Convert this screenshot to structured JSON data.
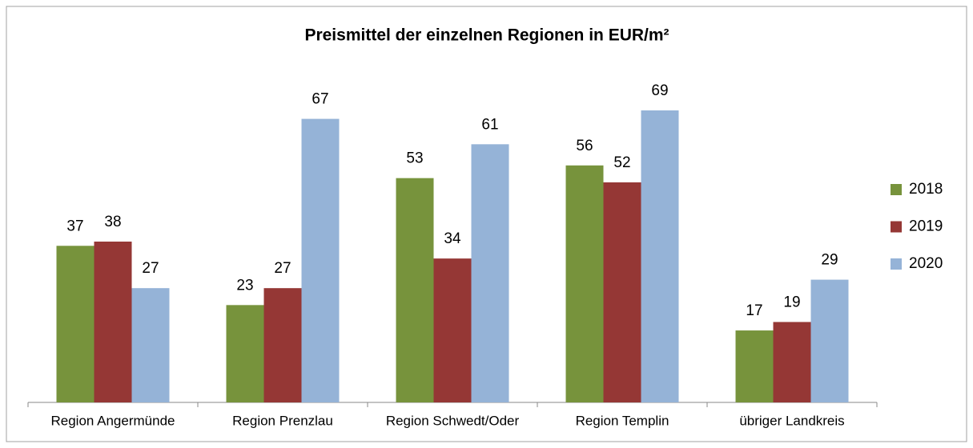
{
  "chart_data": {
    "type": "bar",
    "title": "Preismittel der einzelnen Regionen in EUR/m²",
    "categories": [
      "Region Angermünde",
      "Region Prenzlau",
      "Region Schwedt/Oder",
      "Region Templin",
      "übriger Landkreis"
    ],
    "series": [
      {
        "name": "2018",
        "color": "#77933c",
        "values": [
          37,
          23,
          53,
          56,
          17
        ]
      },
      {
        "name": "2019",
        "color": "#953735",
        "values": [
          38,
          27,
          34,
          52,
          19
        ]
      },
      {
        "name": "2020",
        "color": "#95b3d7",
        "values": [
          27,
          67,
          61,
          69,
          29
        ]
      }
    ],
    "legend": "right"
  }
}
